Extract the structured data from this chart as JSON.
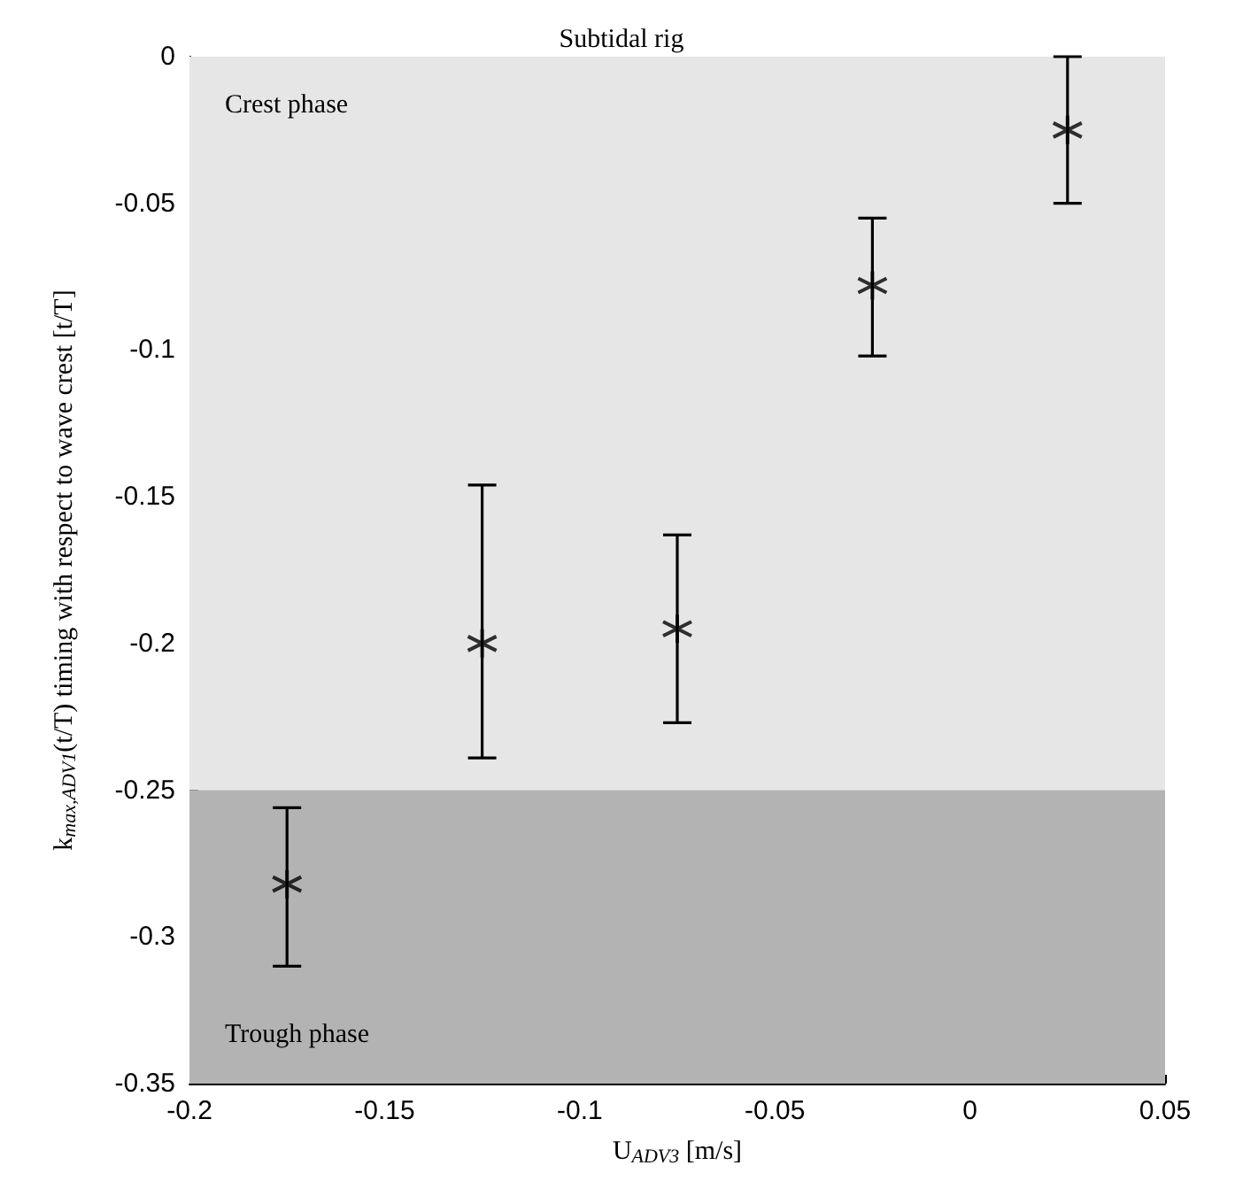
{
  "chart_data": {
    "type": "scatter",
    "title": "Subtidal rig",
    "xlabel": "U$_{ADV3}$ [m/s]",
    "ylabel": "k$_{max,ADV1}$(t/T) timing with respect to wave crest [t/T]",
    "x": [
      -0.175,
      -0.125,
      -0.075,
      -0.025,
      0.025
    ],
    "series": [
      {
        "color": "#000000",
        "values": [
          -0.282,
          -0.2,
          -0.195,
          -0.078,
          -0.025
        ],
        "errors": [
          [
            -0.31,
            -0.256
          ],
          [
            -0.239,
            -0.146
          ],
          [
            -0.227,
            -0.163
          ],
          [
            -0.102,
            -0.055
          ],
          [
            -0.05,
            0
          ]
        ]
      }
    ],
    "marker": "cross",
    "xlim": [
      -0.2,
      0.05
    ],
    "xticks": [
      -0.2,
      -0.15,
      -0.1,
      -0.05,
      0,
      0.05
    ],
    "ylim": [
      -0.35,
      0
    ],
    "yticks": [
      -0.35,
      -0.3,
      -0.25,
      -0.2,
      -0.15,
      -0.1,
      -0.05,
      0
    ],
    "bands": [
      {
        "axis": "y",
        "from": -0.25,
        "to": 0,
        "label": "Crest phase",
        "color": "#e6e6e6"
      },
      {
        "axis": "y",
        "from": -0.35,
        "to": -0.25,
        "label": "Trough phase",
        "color": "#b3b3b3"
      }
    ],
    "grid": false
  }
}
